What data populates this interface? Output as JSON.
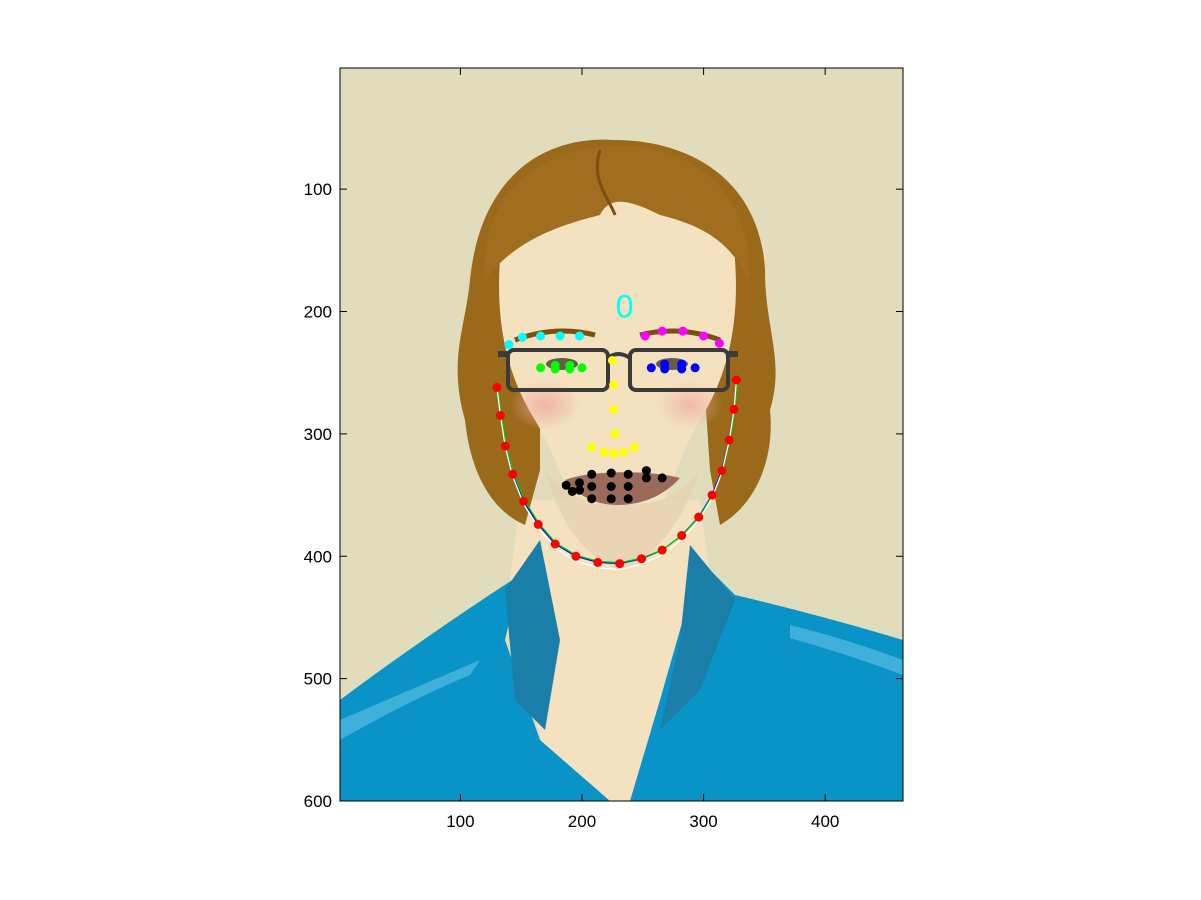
{
  "chart_data": {
    "type": "scatter",
    "title": "",
    "xlabel": "",
    "ylabel": "",
    "xlim": [
      1,
      464
    ],
    "ylim": [
      600,
      1
    ],
    "y_axis_direction": "reversed (image coordinates)",
    "x_ticks": [
      100,
      200,
      300,
      400
    ],
    "y_ticks": [
      100,
      200,
      300,
      400,
      500,
      600
    ],
    "x_tick_labels": [
      "100",
      "200",
      "300",
      "400"
    ],
    "y_tick_labels": [
      "100",
      "200",
      "300",
      "400",
      "500",
      "600"
    ],
    "grid": false,
    "background_image": "cartoon portrait of a man with shoulder-length brown hair, rectangular glasses, stubble, and a blue collared shirt on a beige background",
    "face_label": {
      "text": "0",
      "x": 235,
      "y": 195,
      "color": "#00ffff"
    },
    "series": [
      {
        "name": "jaw",
        "color": "#ff0000",
        "points": [
          [
            130,
            262
          ],
          [
            133,
            285
          ],
          [
            137,
            310
          ],
          [
            143,
            333
          ],
          [
            152,
            355
          ],
          [
            164,
            374
          ],
          [
            178,
            390
          ],
          [
            195,
            400
          ],
          [
            213,
            405
          ],
          [
            231,
            406
          ],
          [
            249,
            402
          ],
          [
            266,
            395
          ],
          [
            282,
            383
          ],
          [
            296,
            368
          ],
          [
            307,
            350
          ],
          [
            315,
            330
          ],
          [
            321,
            305
          ],
          [
            325,
            280
          ],
          [
            327,
            256
          ]
        ]
      },
      {
        "name": "left-eyebrow",
        "color": "#00ffff",
        "points": [
          [
            140,
            227
          ],
          [
            151,
            221
          ],
          [
            166,
            220
          ],
          [
            182,
            220
          ],
          [
            198,
            220
          ]
        ]
      },
      {
        "name": "right-eyebrow",
        "color": "#ff00ff",
        "points": [
          [
            252,
            220
          ],
          [
            266,
            216
          ],
          [
            283,
            216
          ],
          [
            300,
            220
          ],
          [
            313,
            226
          ]
        ]
      },
      {
        "name": "left-eye",
        "color": "#00ff00",
        "points": [
          [
            166,
            246
          ],
          [
            178,
            244
          ],
          [
            190,
            244
          ],
          [
            200,
            246
          ],
          [
            178,
            247
          ],
          [
            190,
            247
          ]
        ]
      },
      {
        "name": "right-eye",
        "color": "#0000ff",
        "points": [
          [
            257,
            246
          ],
          [
            268,
            243
          ],
          [
            282,
            243
          ],
          [
            293,
            246
          ],
          [
            268,
            247
          ],
          [
            282,
            247
          ]
        ]
      },
      {
        "name": "nose",
        "color": "#ffff00",
        "points": [
          [
            225,
            240
          ],
          [
            226,
            260
          ],
          [
            226,
            280
          ],
          [
            227,
            300
          ],
          [
            208,
            311
          ],
          [
            218,
            315
          ],
          [
            226,
            316
          ],
          [
            234,
            315
          ],
          [
            243,
            311
          ]
        ]
      },
      {
        "name": "mouth",
        "color": "#000000",
        "points": [
          [
            187,
            342
          ],
          [
            198,
            340
          ],
          [
            208,
            333
          ],
          [
            224,
            332
          ],
          [
            238,
            333
          ],
          [
            253,
            336
          ],
          [
            266,
            336
          ],
          [
            253,
            330
          ],
          [
            238,
            343
          ],
          [
            224,
            343
          ],
          [
            208,
            343
          ],
          [
            198,
            346
          ],
          [
            208,
            353
          ],
          [
            224,
            353
          ],
          [
            238,
            353
          ],
          [
            192,
            347
          ]
        ]
      }
    ],
    "curves": [
      {
        "name": "jaw-fit-blue",
        "color": "#0000ff"
      },
      {
        "name": "jaw-fit-green",
        "color": "#00cc00"
      },
      {
        "name": "jaw-fit-white",
        "color": "#ffffff"
      }
    ]
  }
}
